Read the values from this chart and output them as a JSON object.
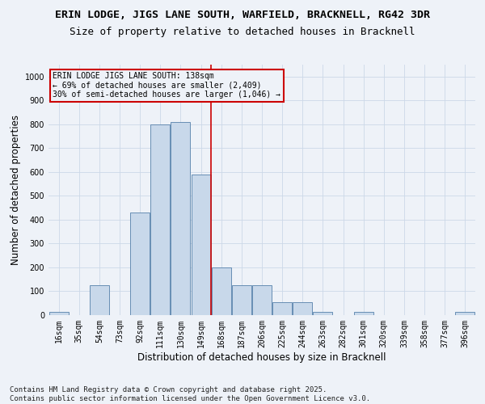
{
  "title1": "ERIN LODGE, JIGS LANE SOUTH, WARFIELD, BRACKNELL, RG42 3DR",
  "title2": "Size of property relative to detached houses in Bracknell",
  "xlabel": "Distribution of detached houses by size in Bracknell",
  "ylabel": "Number of detached properties",
  "categories": [
    "16sqm",
    "35sqm",
    "54sqm",
    "73sqm",
    "92sqm",
    "111sqm",
    "130sqm",
    "149sqm",
    "168sqm",
    "187sqm",
    "206sqm",
    "225sqm",
    "244sqm",
    "263sqm",
    "282sqm",
    "301sqm",
    "320sqm",
    "339sqm",
    "358sqm",
    "377sqm",
    "396sqm"
  ],
  "values": [
    15,
    0,
    125,
    0,
    430,
    800,
    810,
    590,
    200,
    125,
    125,
    55,
    55,
    15,
    0,
    15,
    0,
    0,
    0,
    0,
    15
  ],
  "bar_color": "#c8d8ea",
  "bar_edge_color": "#5580aa",
  "grid_color": "#ccd8e8",
  "bg_color": "#eef2f8",
  "vline_color": "#cc0000",
  "annotation_text": "ERIN LODGE JIGS LANE SOUTH: 138sqm\n← 69% of detached houses are smaller (2,409)\n30% of semi-detached houses are larger (1,046) →",
  "annotation_box_edge_color": "#cc0000",
  "footer": "Contains HM Land Registry data © Crown copyright and database right 2025.\nContains public sector information licensed under the Open Government Licence v3.0.",
  "ylim": [
    0,
    1050
  ],
  "yticks": [
    0,
    100,
    200,
    300,
    400,
    500,
    600,
    700,
    800,
    900,
    1000
  ],
  "title1_fontsize": 9.5,
  "title2_fontsize": 9,
  "axis_label_fontsize": 8.5,
  "tick_fontsize": 7,
  "annot_fontsize": 7,
  "footer_fontsize": 6.5,
  "vline_xindex": 7.5
}
